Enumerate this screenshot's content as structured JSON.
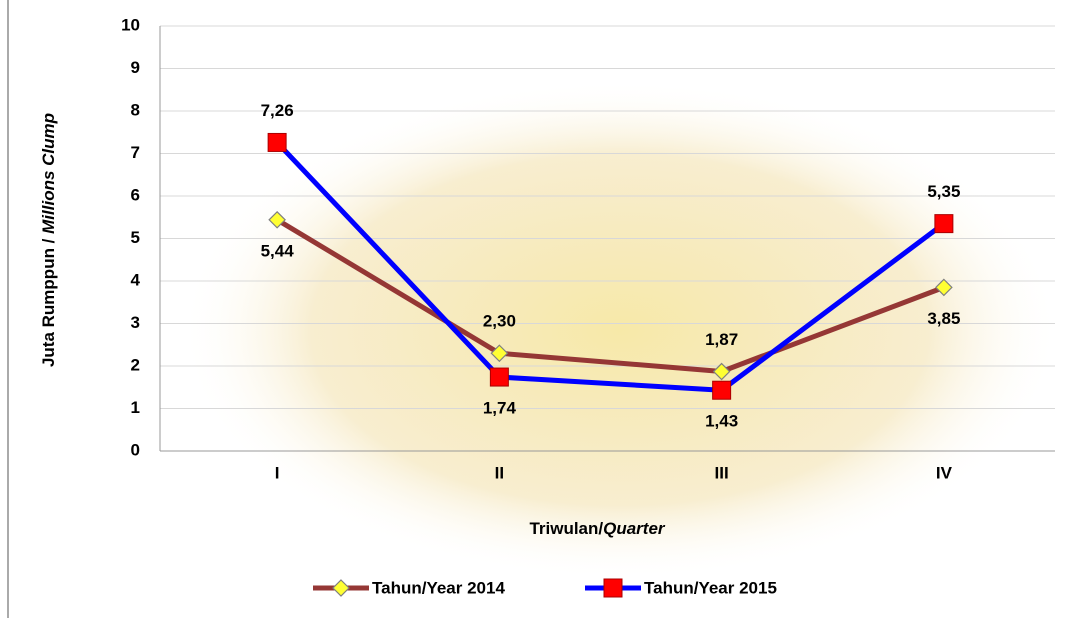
{
  "chart_data": {
    "type": "line",
    "y_label": [
      "Juta Rumppun / ",
      "Millions Clump"
    ],
    "x_label": [
      "Triwulan/",
      "Quarter"
    ],
    "categories": [
      "I",
      "II",
      "III",
      "IV"
    ],
    "series": [
      {
        "name": "Tahun/Year 2014",
        "color": "#953735",
        "marker_color": "#ffff33",
        "marker": "diamond",
        "values": [
          5.44,
          2.3,
          1.87,
          3.85
        ],
        "value_labels": [
          "5,44",
          "2,30",
          "1,87",
          "3,85"
        ]
      },
      {
        "name": "Tahun/Year 2015",
        "color": "#0000ff",
        "marker_color": "#ff0000",
        "marker": "square",
        "values": [
          7.26,
          1.74,
          1.43,
          5.35
        ],
        "value_labels": [
          "7,26",
          "1,74",
          "1,43",
          "5,35"
        ]
      }
    ],
    "ylim": [
      0,
      10
    ],
    "yticks": [
      0,
      1,
      2,
      3,
      4,
      5,
      6,
      7,
      8,
      9,
      10
    ],
    "grid": true,
    "legend": "bottom"
  }
}
